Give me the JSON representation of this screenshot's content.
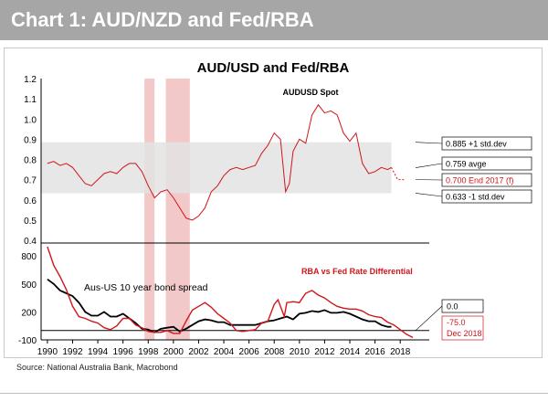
{
  "banner": {
    "title": "Chart 1: AUD/NZD and Fed/RBA"
  },
  "footer": {
    "source": "Source: National Australia Bank, Macrobond"
  },
  "colors": {
    "banner_bg": "#a6a6a6",
    "red": "#d0161b",
    "black": "#000000",
    "band": "#e3e3e3",
    "recession": "#f2c8c8"
  },
  "chart_data": [
    {
      "type": "line",
      "title": "AUD/USD and Fed/RBA",
      "subtitle": "AUDUSD Spot",
      "ylim": [
        0.4,
        1.2
      ],
      "yticks": [
        "0.4",
        "0.5",
        "0.6",
        "0.7",
        "0.8",
        "0.9",
        "1.0",
        "1.1",
        "1.2"
      ],
      "xlim": [
        1989.5,
        2019
      ],
      "shaded_periods": [
        [
          1997.7,
          1998.5
        ],
        [
          1999.4,
          2001.3
        ]
      ],
      "band": {
        "low": 0.633,
        "high": 0.885,
        "mean": 0.759
      },
      "annotations": [
        "0.885 +1 std.dev",
        "0.759 avge",
        "0.700  End 2017 (f)",
        "0.633 -1 std.dev"
      ],
      "series": [
        {
          "name": "AUDUSD Spot",
          "x": [
            1990,
            1990.5,
            1991,
            1991.5,
            1992,
            1992.5,
            1993,
            1993.5,
            1994,
            1994.5,
            1995,
            1995.5,
            1996,
            1996.5,
            1997,
            1997.5,
            1998,
            1998.5,
            1999,
            1999.5,
            2000,
            2000.5,
            2001,
            2001.5,
            2002,
            2002.5,
            2003,
            2003.5,
            2004,
            2004.5,
            2005,
            2005.5,
            2006,
            2006.5,
            2007,
            2007.5,
            2008,
            2008.5,
            2008.9,
            2009.2,
            2009.5,
            2010,
            2010.5,
            2011,
            2011.5,
            2012,
            2012.5,
            2013,
            2013.5,
            2014,
            2014.5,
            2015,
            2015.5,
            2016,
            2016.5,
            2017,
            2017.3
          ],
          "values": [
            0.78,
            0.79,
            0.77,
            0.78,
            0.76,
            0.72,
            0.68,
            0.67,
            0.7,
            0.73,
            0.74,
            0.73,
            0.76,
            0.78,
            0.78,
            0.74,
            0.67,
            0.61,
            0.64,
            0.65,
            0.61,
            0.56,
            0.51,
            0.5,
            0.52,
            0.56,
            0.64,
            0.67,
            0.72,
            0.75,
            0.76,
            0.75,
            0.76,
            0.77,
            0.83,
            0.87,
            0.93,
            0.9,
            0.64,
            0.68,
            0.84,
            0.9,
            0.88,
            1.02,
            1.07,
            1.03,
            1.04,
            1.02,
            0.93,
            0.89,
            0.93,
            0.78,
            0.73,
            0.74,
            0.76,
            0.75,
            0.76
          ]
        },
        {
          "name": "AUDUSD forecast",
          "x": [
            2017.3,
            2017.8,
            2018.3
          ],
          "values": [
            0.76,
            0.7,
            0.7
          ]
        }
      ]
    },
    {
      "type": "line",
      "ylim": [
        -100,
        900
      ],
      "yticks": [
        "-100",
        "200",
        "500",
        "800"
      ],
      "xlim": [
        1989.5,
        2019
      ],
      "xtick_labels": [
        "1990",
        "1992",
        "1994",
        "1996",
        "1998",
        "2000",
        "2002",
        "2004",
        "2006",
        "2008",
        "2010",
        "2012",
        "2014",
        "2016",
        "2018"
      ],
      "shaded_periods": [
        [
          1997.7,
          1998.5
        ],
        [
          1999.4,
          2001.3
        ]
      ],
      "zero_line": 0,
      "annotations": [
        "0.0",
        "-75.0",
        "Dec 2018"
      ],
      "series": [
        {
          "name": "Aus-US 10 year bond spread",
          "x": [
            1990,
            1990.5,
            1991,
            1991.5,
            1992,
            1992.5,
            1993,
            1993.5,
            1994,
            1994.5,
            1995,
            1995.5,
            1996,
            1996.5,
            1997,
            1997.5,
            1998,
            1998.5,
            1999,
            1999.5,
            2000,
            2000.5,
            2001,
            2001.5,
            2002,
            2002.5,
            2003,
            2003.5,
            2004,
            2004.5,
            2005,
            2005.5,
            2006,
            2006.5,
            2007,
            2007.5,
            2008,
            2008.5,
            2009,
            2009.5,
            2010,
            2010.5,
            2011,
            2011.5,
            2012,
            2012.5,
            2013,
            2013.5,
            2014,
            2014.5,
            2015,
            2015.5,
            2016,
            2016.5,
            2017,
            2017.3
          ],
          "values": [
            550,
            500,
            430,
            400,
            370,
            300,
            200,
            160,
            160,
            200,
            150,
            150,
            180,
            130,
            80,
            20,
            10,
            -20,
            20,
            30,
            40,
            -10,
            20,
            60,
            100,
            120,
            110,
            90,
            90,
            60,
            60,
            60,
            60,
            60,
            80,
            100,
            110,
            130,
            150,
            120,
            180,
            190,
            210,
            200,
            220,
            190,
            190,
            200,
            180,
            150,
            120,
            100,
            100,
            60,
            40,
            40
          ]
        },
        {
          "name": "RBA vs Fed Rate Differential",
          "x": [
            1990,
            1990.5,
            1991,
            1991.5,
            1992,
            1992.5,
            1993,
            1993.5,
            1994,
            1994.5,
            1995,
            1995.5,
            1996,
            1996.5,
            1997,
            1997.5,
            1998,
            1998.5,
            1999,
            1999.5,
            2000,
            2000.5,
            2001,
            2001.5,
            2002,
            2002.5,
            2003,
            2003.5,
            2004,
            2004.5,
            2005,
            2005.5,
            2006,
            2006.5,
            2007,
            2007.5,
            2008,
            2008.3,
            2008.8,
            2009,
            2009.5,
            2010,
            2010.5,
            2011,
            2011.5,
            2012,
            2012.5,
            2013,
            2013.5,
            2014,
            2014.5,
            2015,
            2015.5,
            2016,
            2016.5,
            2017,
            2017.5,
            2018,
            2018.5,
            2019
          ],
          "values": [
            900,
            700,
            580,
            440,
            260,
            150,
            130,
            100,
            80,
            30,
            10,
            50,
            130,
            130,
            60,
            30,
            -10,
            -20,
            -20,
            0,
            -30,
            -30,
            100,
            220,
            260,
            300,
            250,
            180,
            130,
            80,
            0,
            -10,
            0,
            10,
            80,
            100,
            280,
            330,
            150,
            300,
            310,
            300,
            400,
            430,
            380,
            350,
            300,
            260,
            240,
            230,
            230,
            210,
            170,
            150,
            140,
            90,
            60,
            10,
            -40,
            -75
          ]
        }
      ]
    }
  ]
}
